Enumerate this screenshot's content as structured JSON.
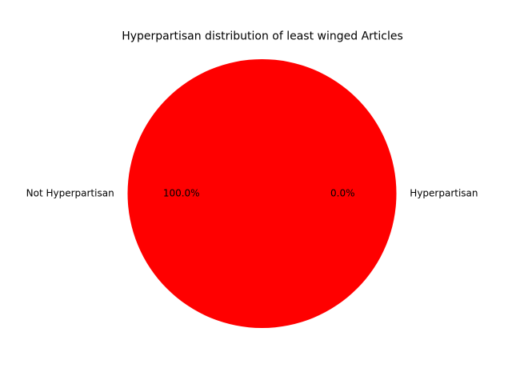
{
  "chart_data": {
    "type": "pie",
    "title": "Hyperpartisan distribution of least winged Articles",
    "slices": [
      {
        "label": "Hyperpartisan",
        "value": 0.0,
        "pct_label": "0.0%",
        "color": "#0000ff"
      },
      {
        "label": "Not Hyperpartisan",
        "value": 100.0,
        "pct_label": "100.0%",
        "color": "#ff0000"
      }
    ],
    "start_angle_deg": 0,
    "direction": "counterclockwise",
    "legend": "none"
  }
}
